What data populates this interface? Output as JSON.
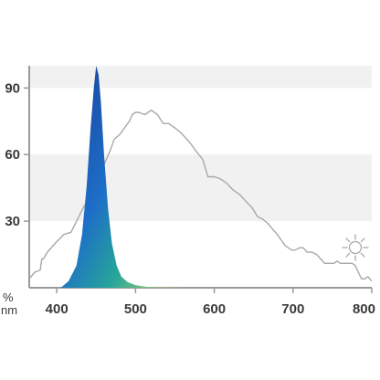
{
  "chart_data": {
    "type": "area",
    "title": "",
    "xlabel": "nm",
    "ylabel": "%",
    "xlim": [
      365,
      800
    ],
    "ylim": [
      0,
      100
    ],
    "x_ticks": [
      400,
      500,
      600,
      700,
      800
    ],
    "x_tick_labels": [
      "400",
      "500",
      "600",
      "700",
      "800"
    ],
    "y_ticks": [
      30,
      60,
      90
    ],
    "y_tick_labels": [
      "30",
      "60",
      "90"
    ],
    "background_bands": [
      [
        30,
        60
      ],
      [
        90,
        100
      ]
    ],
    "colors": {
      "band": "#f1f1f1",
      "axis": "#9a9a9a",
      "curve": "#a8a8a8",
      "peak_top": "#1a3f9a",
      "peak_mid": "#1d6ec7",
      "peak_low": "#27a59a",
      "peak_tail": "#cfe06a"
    },
    "icon": "sun-icon",
    "series": [
      {
        "x": [
          365,
          372,
          379,
          381,
          383,
          388,
          398,
          409,
          418,
          428,
          435,
          445,
          452,
          458,
          463,
          468,
          473,
          480,
          488,
          492,
          496,
          500,
          504,
          512,
          520,
          528,
          535,
          542,
          550,
          557,
          565,
          572,
          578,
          585,
          592,
          600,
          608,
          616,
          624,
          632,
          640,
          648,
          655,
          661,
          668,
          675,
          680,
          684,
          690,
          698,
          703,
          708,
          713,
          718,
          724,
          730,
          735,
          740,
          746,
          752,
          756,
          760,
          765,
          770,
          775,
          779,
          783,
          787,
          791,
          795,
          800
        ],
        "values": [
          4,
          7,
          8,
          13,
          13,
          16,
          20,
          24,
          25,
          32,
          37,
          40,
          46,
          54,
          58,
          62,
          67,
          69,
          73,
          75,
          78,
          79,
          79,
          78,
          80,
          78,
          74,
          74,
          72,
          70,
          67,
          64,
          61,
          58,
          50,
          50,
          49,
          47,
          44,
          42,
          39,
          36,
          32,
          31,
          29,
          26,
          24,
          22,
          19,
          17,
          17,
          18,
          18,
          16,
          16,
          15,
          13,
          11,
          11,
          11,
          12,
          11,
          11,
          11,
          11,
          10,
          7,
          4,
          4,
          5,
          3
        ]
      },
      {
        "x": [
          405,
          415,
          425,
          432,
          438,
          443,
          447,
          450,
          453,
          456,
          460,
          465,
          470,
          476,
          482,
          490,
          500,
          512,
          525,
          540,
          560
        ],
        "values": [
          0,
          3,
          10,
          24,
          46,
          72,
          90,
          100,
          96,
          84,
          60,
          36,
          20,
          10,
          5,
          2.5,
          1.2,
          0.5,
          0.2,
          0.1,
          0
        ]
      }
    ]
  }
}
